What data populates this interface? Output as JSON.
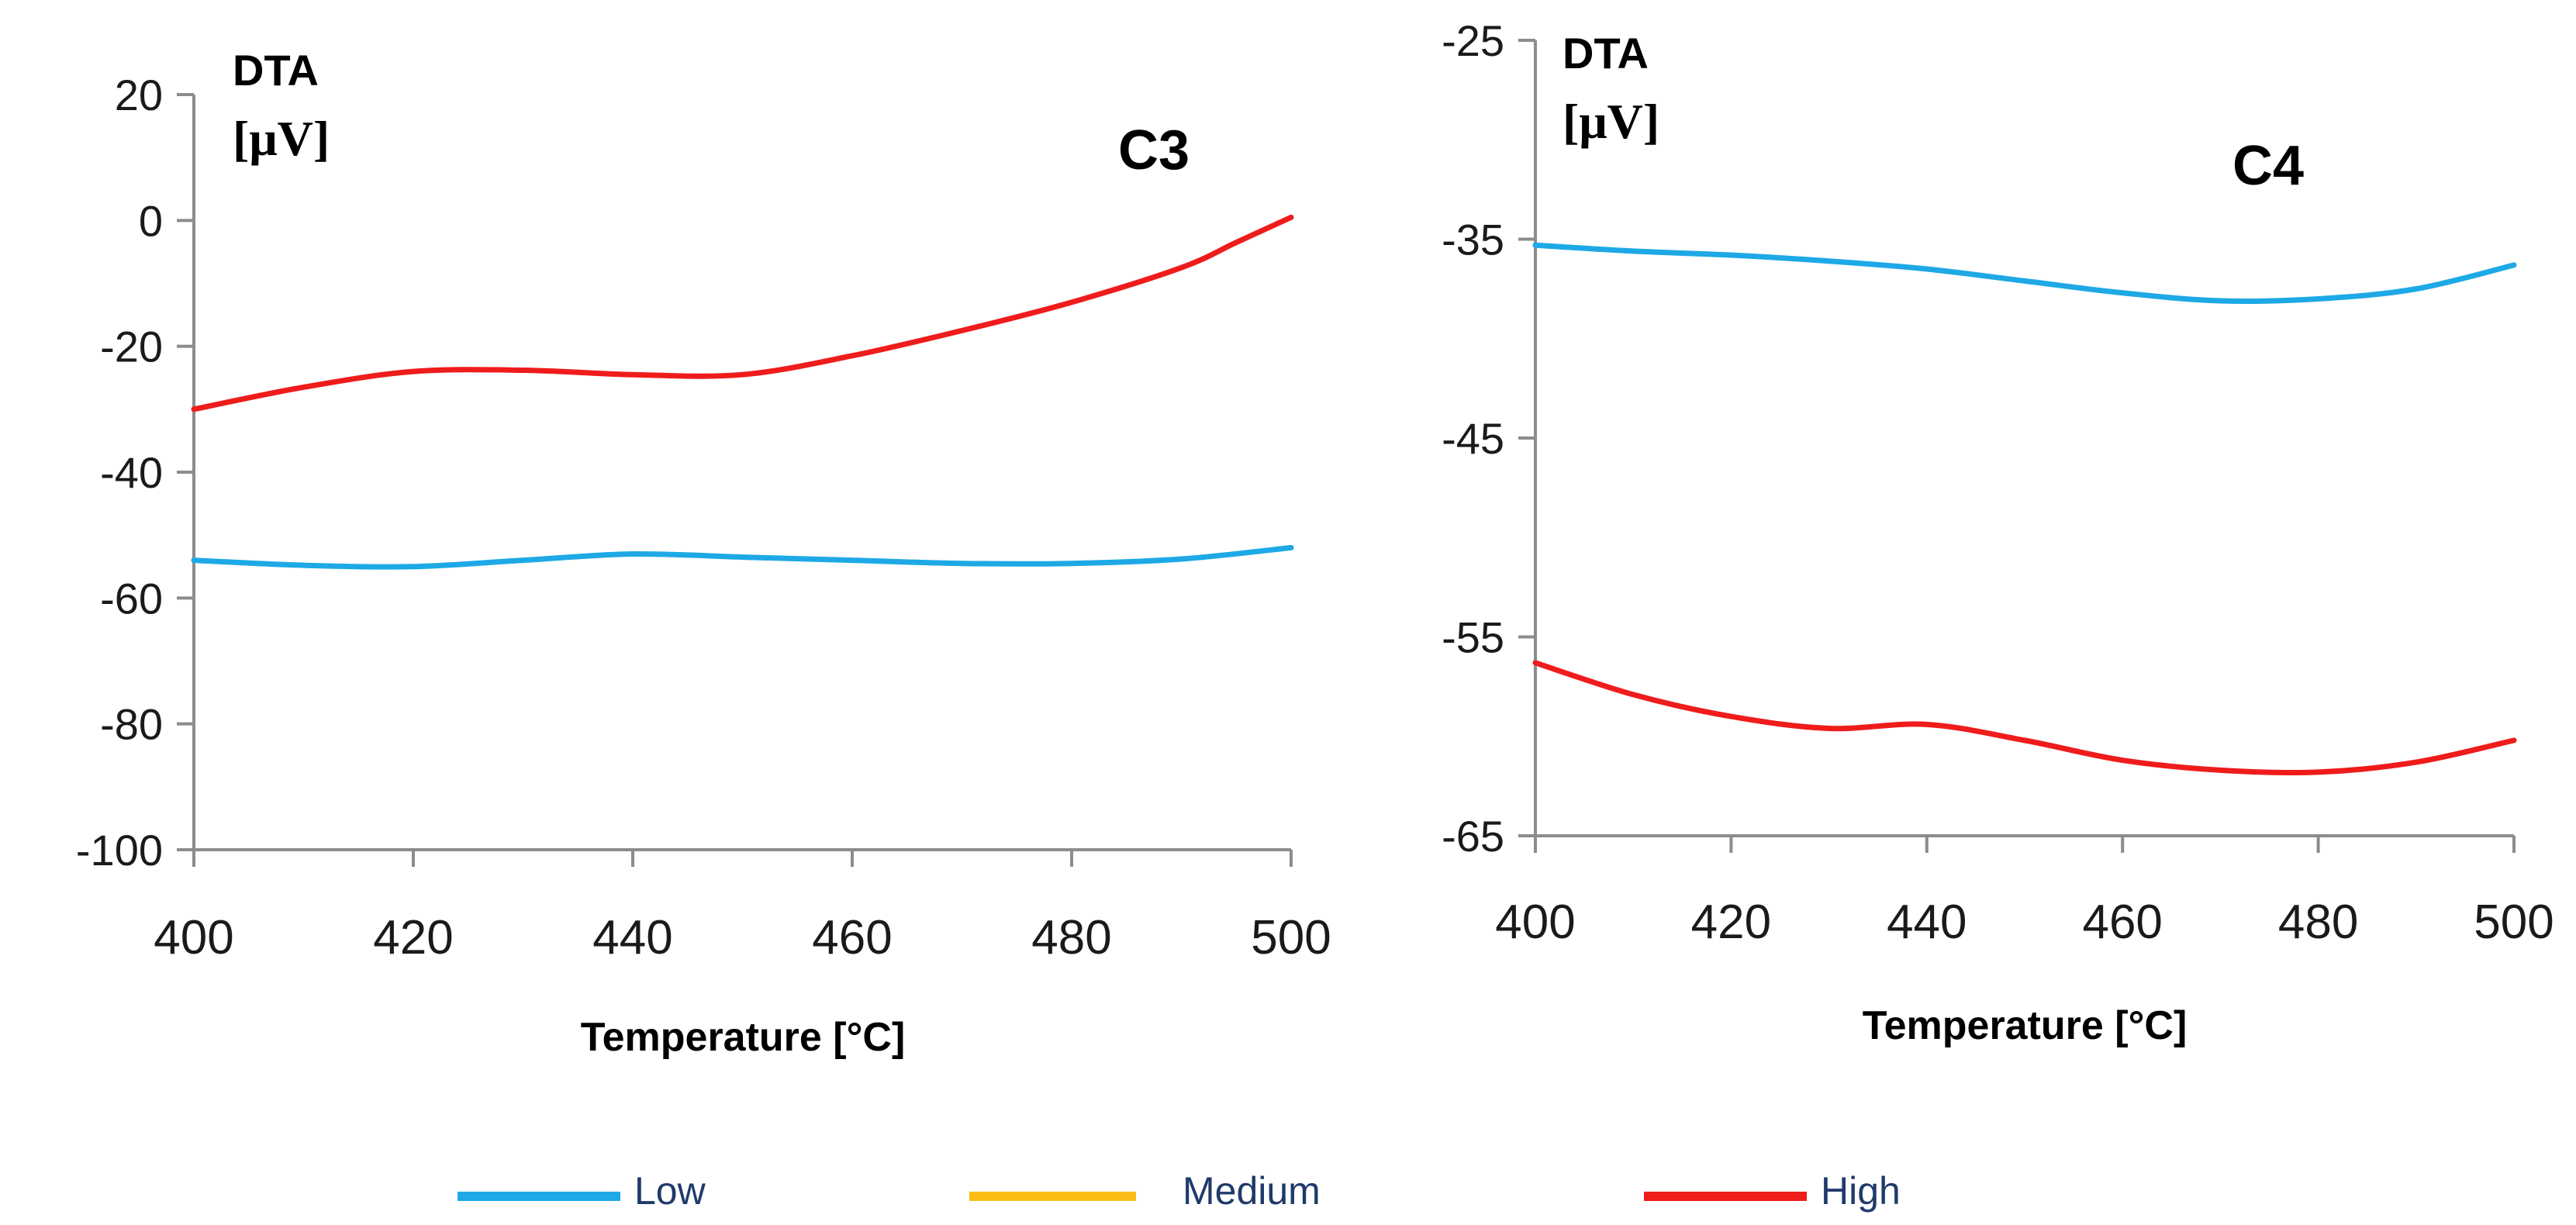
{
  "chart_data": [
    {
      "type": "line",
      "title": "C3",
      "ylabel_line1": "DTA",
      "ylabel_line2": "[μV]",
      "xlabel": "Temperature [°C]",
      "xlim": [
        400,
        500
      ],
      "ylim": [
        -100,
        20
      ],
      "xticks": [
        400,
        420,
        440,
        460,
        480,
        500
      ],
      "yticks": [
        20,
        0,
        -20,
        -40,
        -60,
        -80,
        -100
      ],
      "grid": false,
      "series": [
        {
          "name": "Low",
          "color": "#1ea9e6",
          "x": [
            400,
            410,
            420,
            430,
            440,
            450,
            460,
            470,
            480,
            490,
            500
          ],
          "y": [
            -54,
            -54.8,
            -55,
            -54,
            -53,
            -53.5,
            -54,
            -54.5,
            -54.5,
            -53.8,
            -52
          ]
        },
        {
          "name": "High",
          "color": "#ef1c1c",
          "x": [
            400,
            410,
            420,
            430,
            440,
            450,
            460,
            470,
            480,
            490,
            495,
            500
          ],
          "y": [
            -30,
            -26.5,
            -24,
            -23.8,
            -24.5,
            -24.5,
            -21.5,
            -17.5,
            -13,
            -7.5,
            -3.5,
            0.5
          ]
        }
      ]
    },
    {
      "type": "line",
      "title": "C4",
      "ylabel_line1": "DTA",
      "ylabel_line2": "[μV]",
      "xlabel": "Temperature [°C]",
      "xlim": [
        400,
        500
      ],
      "ylim": [
        -65,
        -25
      ],
      "xticks": [
        400,
        420,
        440,
        460,
        480,
        500
      ],
      "yticks": [
        -25,
        -35,
        -45,
        -55,
        -65
      ],
      "grid": false,
      "series": [
        {
          "name": "Low",
          "color": "#1ea9e6",
          "x": [
            400,
            410,
            420,
            430,
            440,
            450,
            460,
            470,
            480,
            490,
            500
          ],
          "y": [
            -35.3,
            -35.6,
            -35.8,
            -36.1,
            -36.5,
            -37.1,
            -37.7,
            -38.1,
            -38,
            -37.5,
            -36.3
          ]
        },
        {
          "name": "High",
          "color": "#ef1c1c",
          "x": [
            400,
            410,
            420,
            430,
            440,
            450,
            460,
            470,
            480,
            490,
            500
          ],
          "y": [
            -56.3,
            -57.9,
            -59,
            -59.6,
            -59.4,
            -60.2,
            -61.2,
            -61.7,
            -61.8,
            -61.3,
            -60.2
          ]
        }
      ]
    }
  ],
  "legend": [
    {
      "label": "Low",
      "color": "#1ea9e6"
    },
    {
      "label": "Medium",
      "color": "#f9bd16"
    },
    {
      "label": "High",
      "color": "#ef1c1c"
    }
  ]
}
